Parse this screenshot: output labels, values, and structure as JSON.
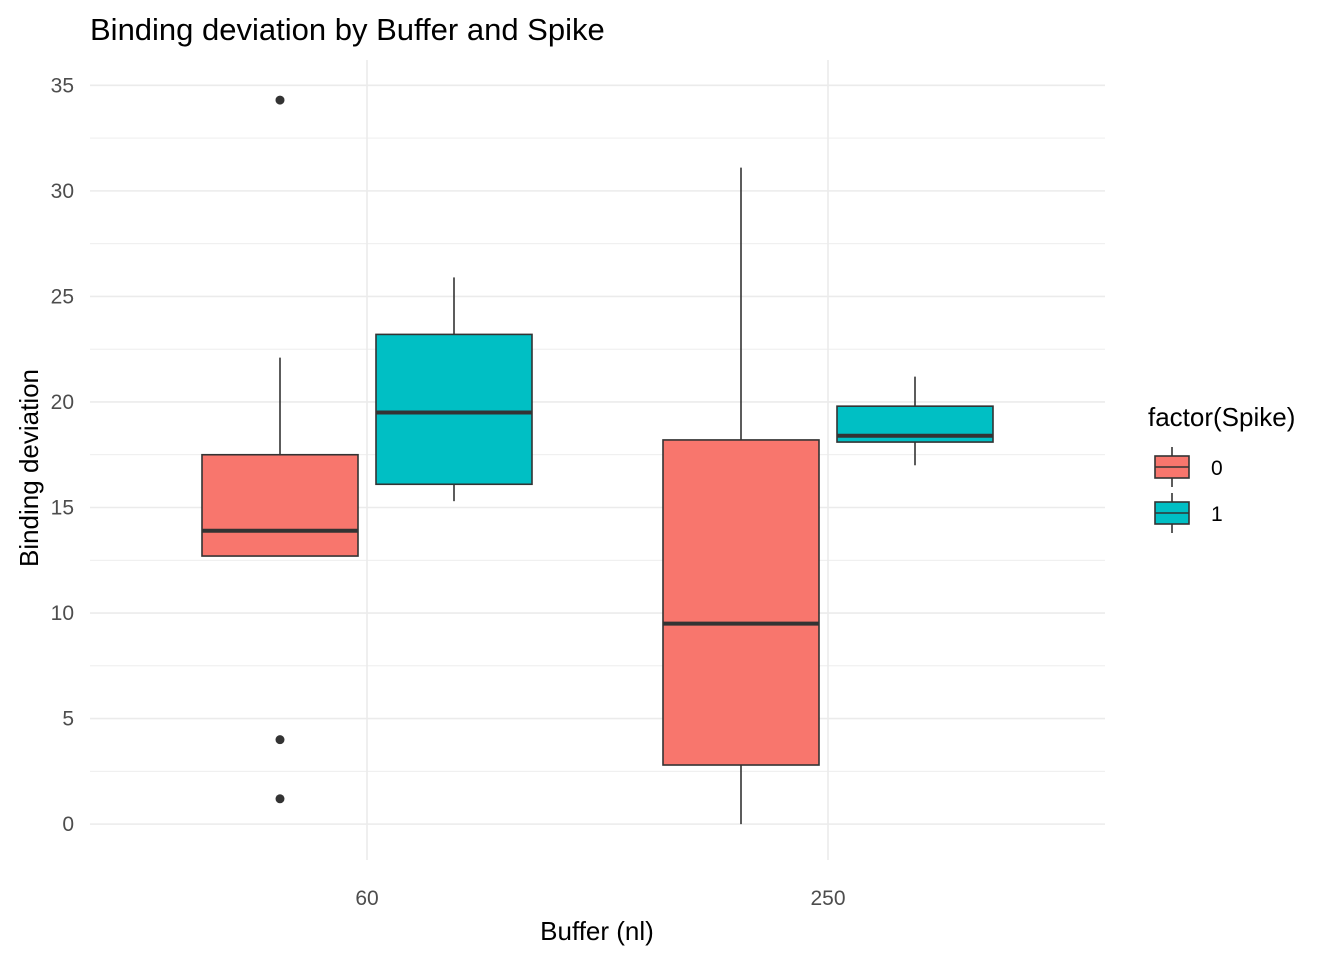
{
  "chart_data": {
    "type": "boxplot",
    "title": "Binding deviation by Buffer and Spike",
    "xlabel": "Buffer (nl)",
    "ylabel": "Binding deviation",
    "categories": [
      "60",
      "250"
    ],
    "ylim": [
      -1.7,
      36.2
    ],
    "y_ticks": [
      0,
      5,
      10,
      15,
      20,
      25,
      30,
      35
    ],
    "y_tick_labels": [
      "0",
      "5",
      "10",
      "15",
      "20",
      "25",
      "30",
      "35"
    ],
    "grid": true,
    "legend": {
      "title": "factor(Spike)",
      "position": "right",
      "entries": [
        "0",
        "1"
      ]
    },
    "series": [
      {
        "name": "0",
        "color": "#F8766D",
        "boxes": [
          {
            "category": "60",
            "whisker_low": 12.7,
            "q1": 12.7,
            "median": 13.9,
            "q3": 17.5,
            "whisker_high": 22.1,
            "outliers": [
              34.3,
              4.0,
              1.2
            ]
          },
          {
            "category": "250",
            "whisker_low": 0.0,
            "q1": 2.8,
            "median": 9.5,
            "q3": 18.2,
            "whisker_high": 31.1,
            "outliers": []
          }
        ]
      },
      {
        "name": "1",
        "color": "#00BFC4",
        "boxes": [
          {
            "category": "60",
            "whisker_low": 15.3,
            "q1": 16.1,
            "median": 19.5,
            "q3": 23.2,
            "whisker_high": 25.9,
            "outliers": []
          },
          {
            "category": "250",
            "whisker_low": 17.0,
            "q1": 18.1,
            "median": 18.4,
            "q3": 19.8,
            "whisker_high": 21.2,
            "outliers": []
          }
        ]
      }
    ]
  },
  "colors": {
    "grid": "#ebebeb",
    "box_line": "#333333",
    "tick_text": "#4d4d4d"
  }
}
